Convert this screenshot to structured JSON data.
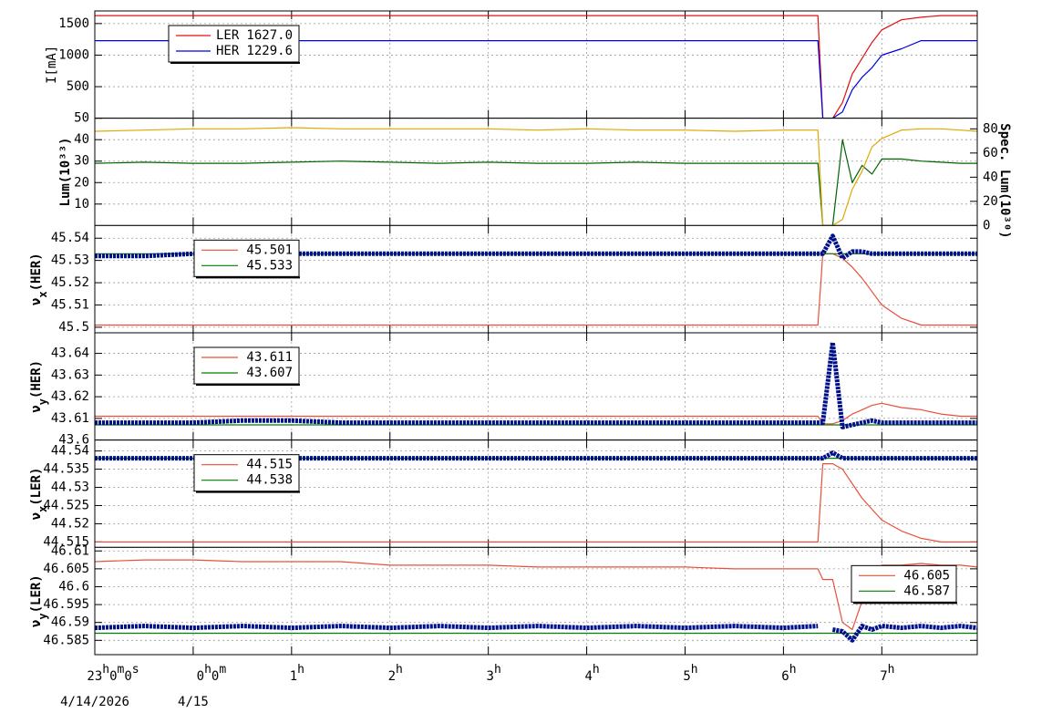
{
  "chart_data": [
    {
      "type": "line",
      "ylabel": "I[mA]",
      "grid": true,
      "legend": "upper left",
      "x": [
        0,
        0.5,
        1,
        1.5,
        2,
        2.5,
        3,
        3.5,
        4,
        4.5,
        5,
        5.5,
        6,
        6.5,
        7,
        7.35,
        7.4,
        7.5,
        7.6,
        7.7,
        7.8,
        7.9,
        8,
        8.2,
        8.4,
        8.6,
        8.8,
        8.97
      ],
      "xlim": [
        0,
        8.97
      ],
      "xticks": [
        1,
        2,
        3,
        4,
        5,
        6,
        7,
        8
      ],
      "ylim": [
        0,
        1700
      ],
      "yticks": [
        500,
        1000,
        1500
      ],
      "series": [
        {
          "name": "LER",
          "legend_value": "1627.0",
          "color": "#e01010",
          "style": "line",
          "values": [
            1627,
            1627,
            1627,
            1627,
            1627,
            1627,
            1627,
            1627,
            1627,
            1627,
            1627,
            1627,
            1627,
            1627,
            1627,
            1627,
            0,
            0,
            250,
            700,
            950,
            1200,
            1400,
            1560,
            1600,
            1627,
            1627,
            1627
          ]
        },
        {
          "name": "HER",
          "legend_value": "1229.6",
          "color": "#0000e0",
          "style": "line",
          "values": [
            1229.6,
            1229.6,
            1229.6,
            1229.6,
            1229.6,
            1229.6,
            1229.6,
            1229.6,
            1229.6,
            1229.6,
            1229.6,
            1229.6,
            1229.6,
            1229.6,
            1229.6,
            1229.6,
            0,
            0,
            100,
            450,
            650,
            800,
            1000,
            1100,
            1229.6,
            1229.6,
            1229.6,
            1229.6
          ]
        }
      ]
    },
    {
      "type": "line",
      "ylabel": "Lum(10³³)",
      "y2label": "Spec. Lum(10³⁰)",
      "grid": true,
      "x": [
        0,
        0.5,
        1,
        1.5,
        2,
        2.5,
        3,
        3.5,
        4,
        4.5,
        5,
        5.5,
        6,
        6.5,
        7,
        7.35,
        7.4,
        7.5,
        7.6,
        7.7,
        7.8,
        7.9,
        8,
        8.2,
        8.4,
        8.6,
        8.8,
        8.97
      ],
      "xlim": [
        0,
        8.97
      ],
      "xticks": [
        1,
        2,
        3,
        4,
        5,
        6,
        7,
        8
      ],
      "ylim": [
        0,
        50
      ],
      "yticks": [
        10,
        20,
        30,
        40,
        50
      ],
      "y2lim": [
        0,
        88.8
      ],
      "y2ticks": [
        0,
        20,
        40,
        60,
        80
      ],
      "series": [
        {
          "color": "#006400",
          "style": "line",
          "values": [
            29,
            29.5,
            29,
            29,
            29.5,
            30,
            29.5,
            29,
            29.5,
            29,
            29,
            29.5,
            29,
            29,
            29,
            29,
            0,
            0,
            40,
            20,
            28,
            24,
            31,
            31,
            30,
            29.5,
            29,
            29
          ]
        },
        {
          "color": "#e0a800",
          "style": "line",
          "axis": "y2",
          "values": [
            78,
            79,
            80,
            80,
            81,
            80,
            80,
            80,
            80,
            79,
            80,
            79,
            79,
            78,
            79,
            79,
            0,
            0,
            5,
            30,
            45,
            65,
            72,
            79,
            80,
            80,
            79,
            78
          ]
        }
      ]
    },
    {
      "type": "line",
      "ylabel": "νx(HER)",
      "grid": true,
      "legend": "upper left",
      "x": [
        0,
        0.5,
        1,
        1.5,
        2,
        2.5,
        3,
        3.5,
        4,
        4.5,
        5,
        5.5,
        6,
        6.5,
        7,
        7.35,
        7.4,
        7.5,
        7.6,
        7.7,
        7.8,
        7.9,
        8,
        8.2,
        8.4,
        8.6,
        8.8,
        8.97
      ],
      "xlim": [
        0,
        8.97
      ],
      "xticks": [
        1,
        2,
        3,
        4,
        5,
        6,
        7,
        8
      ],
      "ylim": [
        45.4975,
        45.5457
      ],
      "yticks": [
        45.5,
        45.51,
        45.52,
        45.53,
        45.54
      ],
      "series": [
        {
          "name": "45.501",
          "color": "#e8503a",
          "style": "line",
          "values": [
            45.501,
            45.501,
            45.501,
            45.501,
            45.501,
            45.501,
            45.501,
            45.501,
            45.501,
            45.501,
            45.501,
            45.501,
            45.501,
            45.501,
            45.501,
            45.501,
            45.533,
            45.533,
            45.531,
            45.527,
            45.522,
            45.516,
            45.51,
            45.504,
            45.501,
            45.501,
            45.501,
            45.501
          ]
        },
        {
          "name": "45.533",
          "color": "#008000",
          "style": "line",
          "values": [
            45.533,
            45.533,
            45.533,
            45.533,
            45.533,
            45.533,
            45.533,
            45.533,
            45.533,
            45.533,
            45.533,
            45.533,
            45.533,
            45.533,
            45.533,
            45.533,
            45.533,
            45.533,
            45.533,
            45.533,
            45.533,
            45.533,
            45.533,
            45.533,
            45.533,
            45.533,
            45.533,
            45.533
          ]
        },
        {
          "color": "#00108a",
          "style": "band",
          "values": [
            45.532,
            45.532,
            45.533,
            45.533,
            45.533,
            45.533,
            45.533,
            45.533,
            45.533,
            45.533,
            45.533,
            45.533,
            45.533,
            45.533,
            45.533,
            45.533,
            45.533,
            45.541,
            45.531,
            45.534,
            45.534,
            45.533,
            45.533,
            45.533,
            45.533,
            45.533,
            45.533,
            45.533
          ]
        }
      ]
    },
    {
      "type": "line",
      "ylabel": "νy(HER)",
      "grid": true,
      "legend": "upper left",
      "x": [
        0,
        0.5,
        1,
        1.5,
        2,
        2.5,
        3,
        3.5,
        4,
        4.5,
        5,
        5.5,
        6,
        6.5,
        7,
        7.35,
        7.4,
        7.5,
        7.6,
        7.7,
        7.8,
        7.9,
        8,
        8.2,
        8.4,
        8.6,
        8.8,
        8.97
      ],
      "xlim": [
        0,
        8.97
      ],
      "xticks": [
        1,
        2,
        3,
        4,
        5,
        6,
        7,
        8
      ],
      "ylim": [
        43.6,
        43.6495
      ],
      "yticks": [
        43.6,
        43.61,
        43.62,
        43.63,
        43.64
      ],
      "series": [
        {
          "name": "43.611",
          "color": "#e8503a",
          "style": "line",
          "values": [
            43.611,
            43.611,
            43.611,
            43.611,
            43.611,
            43.611,
            43.611,
            43.611,
            43.611,
            43.611,
            43.611,
            43.611,
            43.611,
            43.611,
            43.611,
            43.611,
            43.6075,
            43.6075,
            43.609,
            43.612,
            43.614,
            43.616,
            43.617,
            43.615,
            43.614,
            43.612,
            43.611,
            43.611
          ]
        },
        {
          "name": "43.607",
          "color": "#008000",
          "style": "line",
          "values": [
            43.607,
            43.607,
            43.607,
            43.607,
            43.607,
            43.607,
            43.607,
            43.607,
            43.607,
            43.607,
            43.607,
            43.607,
            43.607,
            43.607,
            43.607,
            43.607,
            43.607,
            43.607,
            43.607,
            43.607,
            43.607,
            43.607,
            43.607,
            43.607,
            43.607,
            43.607,
            43.607,
            43.607
          ]
        },
        {
          "color": "#00108a",
          "style": "band",
          "values": [
            43.608,
            43.608,
            43.608,
            43.609,
            43.609,
            43.608,
            43.608,
            43.608,
            43.608,
            43.608,
            43.608,
            43.608,
            43.608,
            43.608,
            43.608,
            43.608,
            43.608,
            43.645,
            43.606,
            43.607,
            43.608,
            43.609,
            43.608,
            43.608,
            43.608,
            43.608,
            43.608,
            43.608
          ]
        }
      ]
    },
    {
      "type": "line",
      "ylabel": "νx(LER)",
      "grid": true,
      "legend": "upper left",
      "x": [
        0,
        0.5,
        1,
        1.5,
        2,
        2.5,
        3,
        3.5,
        4,
        4.5,
        5,
        5.5,
        6,
        6.5,
        7,
        7.35,
        7.4,
        7.5,
        7.6,
        7.7,
        7.8,
        7.9,
        8,
        8.2,
        8.4,
        8.6,
        8.8,
        8.97
      ],
      "xlim": [
        0,
        8.97
      ],
      "xticks": [
        1,
        2,
        3,
        4,
        5,
        6,
        7,
        8
      ],
      "ylim": [
        44.5135,
        44.543
      ],
      "yticks": [
        44.515,
        44.52,
        44.525,
        44.53,
        44.535,
        44.54
      ],
      "series": [
        {
          "name": "44.515",
          "color": "#e8503a",
          "style": "line",
          "values": [
            44.515,
            44.515,
            44.515,
            44.515,
            44.515,
            44.515,
            44.515,
            44.515,
            44.515,
            44.515,
            44.515,
            44.515,
            44.515,
            44.515,
            44.515,
            44.515,
            44.5365,
            44.5365,
            44.535,
            44.531,
            44.527,
            44.524,
            44.521,
            44.518,
            44.516,
            44.515,
            44.515,
            44.515
          ]
        },
        {
          "name": "44.538",
          "color": "#008000",
          "style": "line",
          "values": [
            44.538,
            44.538,
            44.538,
            44.538,
            44.538,
            44.538,
            44.538,
            44.538,
            44.538,
            44.538,
            44.538,
            44.538,
            44.538,
            44.538,
            44.538,
            44.538,
            44.538,
            44.538,
            44.538,
            44.538,
            44.538,
            44.538,
            44.538,
            44.538,
            44.538,
            44.538,
            44.538,
            44.538
          ]
        },
        {
          "color": "#00108a",
          "style": "band",
          "values": [
            44.538,
            44.538,
            44.538,
            44.538,
            44.538,
            44.538,
            44.538,
            44.538,
            44.538,
            44.538,
            44.538,
            44.538,
            44.538,
            44.538,
            44.538,
            44.538,
            44.538,
            44.5395,
            44.538,
            44.538,
            44.538,
            44.538,
            44.538,
            44.538,
            44.538,
            44.538,
            44.538,
            44.538
          ]
        }
      ]
    },
    {
      "type": "line",
      "ylabel": "νy(LER)",
      "grid": true,
      "legend": "upper right",
      "x": [
        0,
        0.5,
        1,
        1.5,
        2,
        2.5,
        3,
        3.5,
        4,
        4.5,
        5,
        5.5,
        6,
        6.5,
        7,
        7.35,
        7.4,
        7.5,
        7.6,
        7.7,
        7.8,
        7.9,
        8,
        8.2,
        8.4,
        8.6,
        8.8,
        8.97
      ],
      "xlim": [
        0,
        8.97
      ],
      "xticks": [
        {
          "value": 0,
          "label": "23h0m0s"
        },
        {
          "value": 1,
          "label": "0h0m"
        },
        {
          "value": 2,
          "label": "1h"
        },
        {
          "value": 3,
          "label": "2h"
        },
        {
          "value": 4,
          "label": "3h"
        },
        {
          "value": 5,
          "label": "4h"
        },
        {
          "value": 6,
          "label": "5h"
        },
        {
          "value": 7,
          "label": "6h"
        },
        {
          "value": 8,
          "label": "7h"
        }
      ],
      "xtick_dates": [
        {
          "value": 0,
          "label": "4/14/2026"
        },
        {
          "value": 1,
          "label": "4/15"
        }
      ],
      "ylim": [
        46.581,
        46.611
      ],
      "yticks": [
        46.585,
        46.59,
        46.595,
        46.6,
        46.605,
        46.61
      ],
      "series": [
        {
          "name": "46.605",
          "color": "#e8503a",
          "style": "line",
          "values": [
            46.607,
            46.6075,
            46.6075,
            46.607,
            46.607,
            46.607,
            46.606,
            46.606,
            46.606,
            46.6055,
            46.6055,
            46.6055,
            46.6055,
            46.605,
            46.605,
            46.605,
            46.602,
            46.602,
            46.59,
            46.588,
            46.596,
            46.604,
            46.606,
            46.606,
            46.6065,
            46.606,
            46.606,
            46.6055
          ]
        },
        {
          "name": "46.587",
          "color": "#008000",
          "style": "line",
          "values": [
            46.587,
            46.587,
            46.587,
            46.587,
            46.587,
            46.587,
            46.587,
            46.587,
            46.587,
            46.587,
            46.587,
            46.587,
            46.587,
            46.587,
            46.587,
            46.587,
            46.587,
            46.587,
            46.587,
            46.587,
            46.587,
            46.587,
            46.587,
            46.587,
            46.587,
            46.587,
            46.587,
            46.587
          ]
        },
        {
          "color": "#00108a",
          "style": "band",
          "values": [
            46.5885,
            46.589,
            46.5885,
            46.589,
            46.5885,
            46.589,
            46.5885,
            46.589,
            46.5885,
            46.589,
            46.5885,
            46.589,
            46.5885,
            46.589,
            46.5885,
            46.589,
            null,
            46.588,
            46.5875,
            46.585,
            46.589,
            46.588,
            46.589,
            46.5885,
            46.589,
            46.5885,
            46.589,
            46.5885
          ]
        }
      ]
    }
  ]
}
